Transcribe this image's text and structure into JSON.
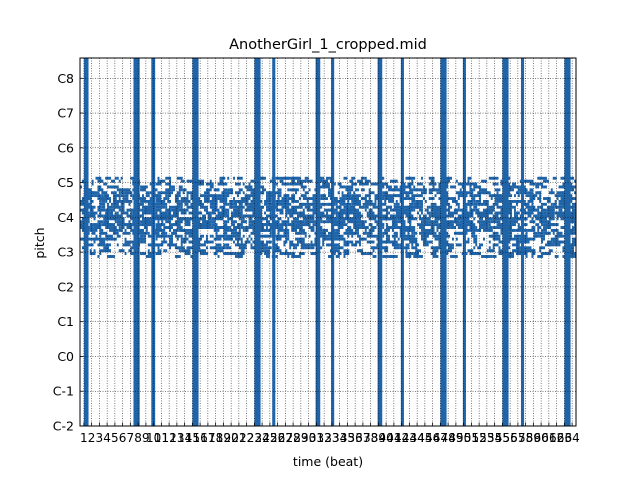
{
  "chart_data": {
    "type": "heatmap",
    "title": "AnotherGirl_1_cropped.mid",
    "xlabel": "time (beat)",
    "ylabel": "pitch",
    "xlim": [
      0.5,
      64.5
    ],
    "ylim": [
      0,
      127
    ],
    "x_ticks": [
      "1",
      "2",
      "3",
      "4",
      "5",
      "6",
      "7",
      "8",
      "9",
      "10",
      "11",
      "12",
      "13",
      "14",
      "15",
      "16",
      "17",
      "18",
      "19",
      "20",
      "21",
      "22",
      "23",
      "24",
      "25",
      "26",
      "27",
      "28",
      "29",
      "30",
      "31",
      "32",
      "33",
      "34",
      "35",
      "36",
      "37",
      "38",
      "39",
      "40",
      "41",
      "42",
      "43",
      "44",
      "45",
      "46",
      "47",
      "48",
      "49",
      "50",
      "51",
      "52",
      "53",
      "54",
      "55",
      "56",
      "57",
      "58",
      "59",
      "60",
      "61",
      "62",
      "63",
      "64"
    ],
    "y_ticks": [
      {
        "label": "C-2",
        "pitch": 0
      },
      {
        "label": "C-1",
        "pitch": 12
      },
      {
        "label": "C0",
        "pitch": 24
      },
      {
        "label": "C1",
        "pitch": 36
      },
      {
        "label": "C2",
        "pitch": 48
      },
      {
        "label": "C3",
        "pitch": 60
      },
      {
        "label": "C4",
        "pitch": 72
      },
      {
        "label": "C5",
        "pitch": 84
      },
      {
        "label": "C6",
        "pitch": 96
      },
      {
        "label": "C7",
        "pitch": 108
      },
      {
        "label": "C8",
        "pitch": 120
      }
    ],
    "grid": true,
    "colors": {
      "note": "#1f64a8",
      "grid": "#000000"
    },
    "full_range_bars": [
      {
        "start": 1.0,
        "end": 1.6
      },
      {
        "start": 7.4,
        "end": 8.2
      },
      {
        "start": 9.7,
        "end": 10.2
      },
      {
        "start": 15.0,
        "end": 15.8
      },
      {
        "start": 23.0,
        "end": 23.8
      },
      {
        "start": 25.3,
        "end": 25.7
      },
      {
        "start": 30.9,
        "end": 31.5
      },
      {
        "start": 32.9,
        "end": 33.3
      },
      {
        "start": 38.9,
        "end": 39.5
      },
      {
        "start": 41.9,
        "end": 42.3
      },
      {
        "start": 47.0,
        "end": 47.8
      },
      {
        "start": 49.9,
        "end": 50.3
      },
      {
        "start": 55.0,
        "end": 55.8
      },
      {
        "start": 57.4,
        "end": 57.8
      },
      {
        "start": 63.0,
        "end": 63.8
      }
    ],
    "note_band": {
      "pitch_min": 58,
      "pitch_max": 85
    }
  }
}
